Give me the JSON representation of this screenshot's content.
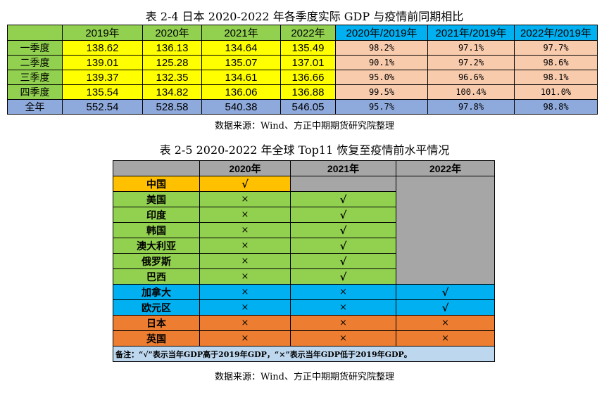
{
  "table1": {
    "title": "表 2-4 日本 2020-2022 年各季度实际 GDP 与疫情前同期相比",
    "headers": [
      "",
      "2019年",
      "2020年",
      "2021年",
      "2022年",
      "2020年/2019年",
      "2021年/2019年",
      "2022年/2019年"
    ],
    "rows": [
      {
        "label": "一季度",
        "values": [
          "138.62",
          "136.13",
          "134.64",
          "135.49"
        ],
        "ratios": [
          "98.2%",
          "97.1%",
          "97.7%"
        ]
      },
      {
        "label": "二季度",
        "values": [
          "139.01",
          "125.28",
          "135.07",
          "137.01"
        ],
        "ratios": [
          "90.1%",
          "97.2%",
          "98.6%"
        ]
      },
      {
        "label": "三季度",
        "values": [
          "139.37",
          "132.35",
          "134.61",
          "136.66"
        ],
        "ratios": [
          "95.0%",
          "96.6%",
          "98.1%"
        ]
      },
      {
        "label": "四季度",
        "values": [
          "135.54",
          "134.82",
          "136.06",
          "136.88"
        ],
        "ratios": [
          "99.5%",
          "100.4%",
          "101.0%"
        ]
      },
      {
        "label": "全年",
        "values": [
          "552.54",
          "528.58",
          "540.38",
          "546.05"
        ],
        "ratios": [
          "95.7%",
          "97.8%",
          "98.8%"
        ]
      }
    ],
    "source": "数据来源：Wind、方正中期期货研究院整理"
  },
  "table2": {
    "title": "表 2-5 2020-2022 年全球 Top11 恢复至疫情前水平情况",
    "headers": [
      "",
      "2020年",
      "2021年",
      "2022年"
    ],
    "rows": [
      {
        "name": "中国",
        "y2020": "√"
      },
      {
        "name": "美国",
        "y2020": "×",
        "y2021": "√"
      },
      {
        "name": "印度",
        "y2020": "×",
        "y2021": "√"
      },
      {
        "name": "韩国",
        "y2020": "×",
        "y2021": "√"
      },
      {
        "name": "澳大利亚",
        "y2020": "×",
        "y2021": "√"
      },
      {
        "name": "俄罗斯",
        "y2020": "×",
        "y2021": "√"
      },
      {
        "name": "巴西",
        "y2020": "×",
        "y2021": "√"
      },
      {
        "name": "加拿大",
        "y2020": "×",
        "y2021": "×",
        "y2022": "√"
      },
      {
        "name": "欧元区",
        "y2020": "×",
        "y2021": "×",
        "y2022": "√"
      },
      {
        "name": "日本",
        "y2020": "×",
        "y2021": "×",
        "y2022": "×"
      },
      {
        "name": "英国",
        "y2020": "×",
        "y2021": "×",
        "y2022": "×"
      }
    ],
    "note": "备注：“√”表示当年GDP高于2019年GDP，“×”表示当年GDP低于2019年GDP。",
    "source": "数据来源：Wind、方正中期期货研究院整理"
  },
  "colors": {
    "green": "#92d050",
    "yellow": "#ffff00",
    "cyan": "#00b0f0",
    "peach": "#f8cbad",
    "blue": "#8ea9db",
    "gray": "#a6a6a6",
    "gold": "#ffc000",
    "orange": "#ed7d31",
    "note": "#bdd7ee"
  }
}
